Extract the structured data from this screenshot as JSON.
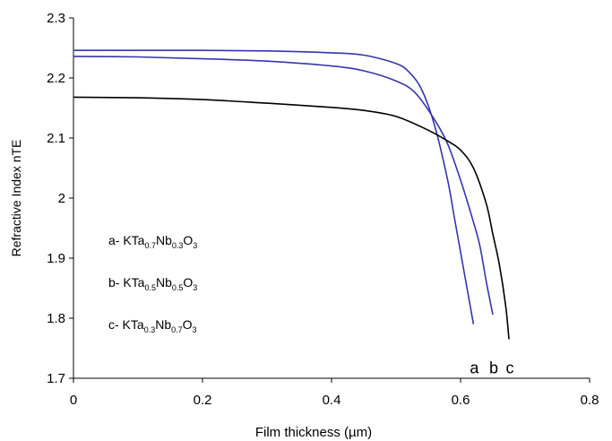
{
  "chart_data": {
    "type": "line",
    "xlabel": "Film thickness (µm)",
    "ylabel": "Refractive Index nTE",
    "xlim": [
      0,
      0.8
    ],
    "ylim": [
      1.7,
      2.3
    ],
    "x_ticks": [
      "0",
      "0.2",
      "0.4",
      "0.6",
      "0.8"
    ],
    "y_ticks": [
      "1.7",
      "1.8",
      "1.9",
      "2",
      "2.1",
      "2.2",
      "2.3"
    ],
    "grid": false,
    "series": [
      {
        "name": "a",
        "color": "#3535b0",
        "end_label": "a",
        "x": [
          0,
          0.1,
          0.2,
          0.3,
          0.4,
          0.45,
          0.5,
          0.52,
          0.54,
          0.56,
          0.58,
          0.59,
          0.6,
          0.61,
          0.62
        ],
        "y": [
          2.246,
          2.246,
          2.246,
          2.245,
          2.242,
          2.238,
          2.224,
          2.21,
          2.18,
          2.12,
          2.03,
          1.97,
          1.91,
          1.85,
          1.79
        ]
      },
      {
        "name": "b",
        "color": "#3535b0",
        "end_label": "b",
        "x": [
          0,
          0.1,
          0.2,
          0.3,
          0.4,
          0.45,
          0.5,
          0.53,
          0.56,
          0.58,
          0.6,
          0.62,
          0.63,
          0.64,
          0.65
        ],
        "y": [
          2.236,
          2.235,
          2.232,
          2.228,
          2.22,
          2.212,
          2.195,
          2.175,
          2.13,
          2.09,
          2.03,
          1.96,
          1.92,
          1.86,
          1.806
        ]
      },
      {
        "name": "c",
        "color": "#000000",
        "end_label": "c",
        "x": [
          0,
          0.1,
          0.2,
          0.3,
          0.4,
          0.45,
          0.5,
          0.55,
          0.58,
          0.6,
          0.62,
          0.64,
          0.65,
          0.66,
          0.67,
          0.675
        ],
        "y": [
          2.168,
          2.167,
          2.164,
          2.158,
          2.151,
          2.146,
          2.136,
          2.113,
          2.095,
          2.08,
          2.05,
          1.99,
          1.94,
          1.89,
          1.82,
          1.765
        ]
      }
    ],
    "legend": {
      "placement": "middle-left",
      "entries": [
        {
          "prefix": "a- KTa",
          "s1": "0.7",
          "mid": "Nb",
          "s2": "0.3",
          "end": "O",
          "s3": "3"
        },
        {
          "prefix": "b- KTa",
          "s1": "0.5",
          "mid": "Nb",
          "s2": "0.5",
          "end": "O",
          "s3": "3"
        },
        {
          "prefix": "c- KTa",
          "s1": "0.3",
          "mid": "Nb",
          "s2": "0.7",
          "end": "O",
          "s3": "3"
        }
      ]
    }
  }
}
